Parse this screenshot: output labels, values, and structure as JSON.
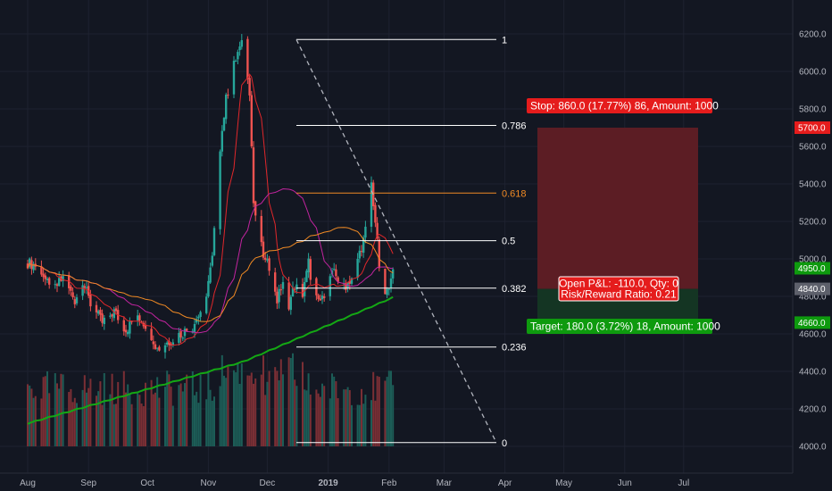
{
  "colors": {
    "background": "#131722",
    "bull": "#26a69a",
    "bear": "#ef5350",
    "ma_fast": "#e0272b",
    "ma_mid": "#c2249f",
    "ma_slow": "#f08a24",
    "ma_long": "#14a814",
    "stop_zone": "#5c1d24",
    "target_zone": "#143523",
    "stop_label": "#e51c1c",
    "target_label": "#0e9a0e",
    "fib_line": "#ffffff",
    "fib_golden": "#f08a24"
  },
  "price_axis": {
    "ticks": [
      "6200.0",
      "6000.0",
      "5800.0",
      "5600.0",
      "5400.0",
      "5200.0",
      "5000.0",
      "4800.0",
      "4600.0",
      "4400.0",
      "4200.0",
      "4000.0"
    ],
    "tags": [
      {
        "label": "5700.0",
        "color": "#e51c1c",
        "value": 5700
      },
      {
        "label": "4950.0",
        "color": "#0e9a0e",
        "value": 4950
      },
      {
        "label": "4840.0",
        "color": "#5d606b",
        "value": 4840
      },
      {
        "label": "4660.0",
        "color": "#0e9a0e",
        "value": 4660
      }
    ]
  },
  "time_axis": {
    "labels": [
      {
        "text": "Aug",
        "bold": false,
        "t": 0
      },
      {
        "text": "Sep",
        "bold": false,
        "t": 31
      },
      {
        "text": "Oct",
        "bold": false,
        "t": 61
      },
      {
        "text": "Nov",
        "bold": false,
        "t": 92
      },
      {
        "text": "Dec",
        "bold": false,
        "t": 122
      },
      {
        "text": "2019",
        "bold": true,
        "t": 153
      },
      {
        "text": "Feb",
        "bold": false,
        "t": 184
      },
      {
        "text": "Mar",
        "bold": false,
        "t": 212
      },
      {
        "text": "Apr",
        "bold": false,
        "t": 243
      },
      {
        "text": "May",
        "bold": false,
        "t": 273
      },
      {
        "text": "Jun",
        "bold": false,
        "t": 304
      },
      {
        "text": "Jul",
        "bold": false,
        "t": 334
      }
    ]
  },
  "fib_levels": [
    {
      "label": "1",
      "value": 6170
    },
    {
      "label": "0.786",
      "value": 5712
    },
    {
      "label": "0.618",
      "value": 5351
    },
    {
      "label": "0.5",
      "value": 5097
    },
    {
      "label": "0.382",
      "value": 4844
    },
    {
      "label": "0.236",
      "value": 4530
    },
    {
      "label": "0",
      "value": 4020
    }
  ],
  "position": {
    "stop_label": "Stop: 860.0 (17.77%) 86, Amount: 1000",
    "target_label": "Target: 180.0 (3.72%) 18, Amount: 1000",
    "pnl_label": "Open P&L: -110.0, Qty: 0",
    "rr_label": "Risk/Reward Ratio: 0.21",
    "stop_price": 5700,
    "entry_price": 4840,
    "target_price": 4660
  }
}
